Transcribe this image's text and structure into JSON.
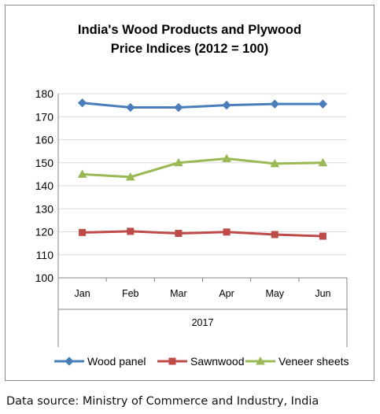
{
  "chart_data": {
    "type": "line",
    "title_line1": "India's Wood Products and Plywood",
    "title_line2": "Price Indices (2012 = 100)",
    "categories": [
      "Jan",
      "Feb",
      "Mar",
      "Apr",
      "May",
      "Jun"
    ],
    "category_group_label": "2017",
    "ylim": [
      100,
      180
    ],
    "yticks": [
      100,
      110,
      120,
      130,
      140,
      150,
      160,
      170,
      180
    ],
    "grid": true,
    "legend_position": "bottom",
    "series": [
      {
        "name": "Wood panel",
        "color": "#4a7ebb",
        "marker": "diamond",
        "values": [
          176,
          174,
          174,
          175,
          175.5,
          175.5
        ]
      },
      {
        "name": "Sawnwood",
        "color": "#be4b48",
        "marker": "square",
        "values": [
          119.7,
          120.2,
          119.3,
          119.9,
          118.8,
          118.1
        ]
      },
      {
        "name": "Veneer sheets",
        "color": "#98b954",
        "marker": "triangle",
        "values": [
          145,
          143.8,
          150,
          151.8,
          149.6,
          150
        ]
      }
    ]
  },
  "footer": {
    "source": "Data source: Ministry of Commerce and Industry, India"
  }
}
